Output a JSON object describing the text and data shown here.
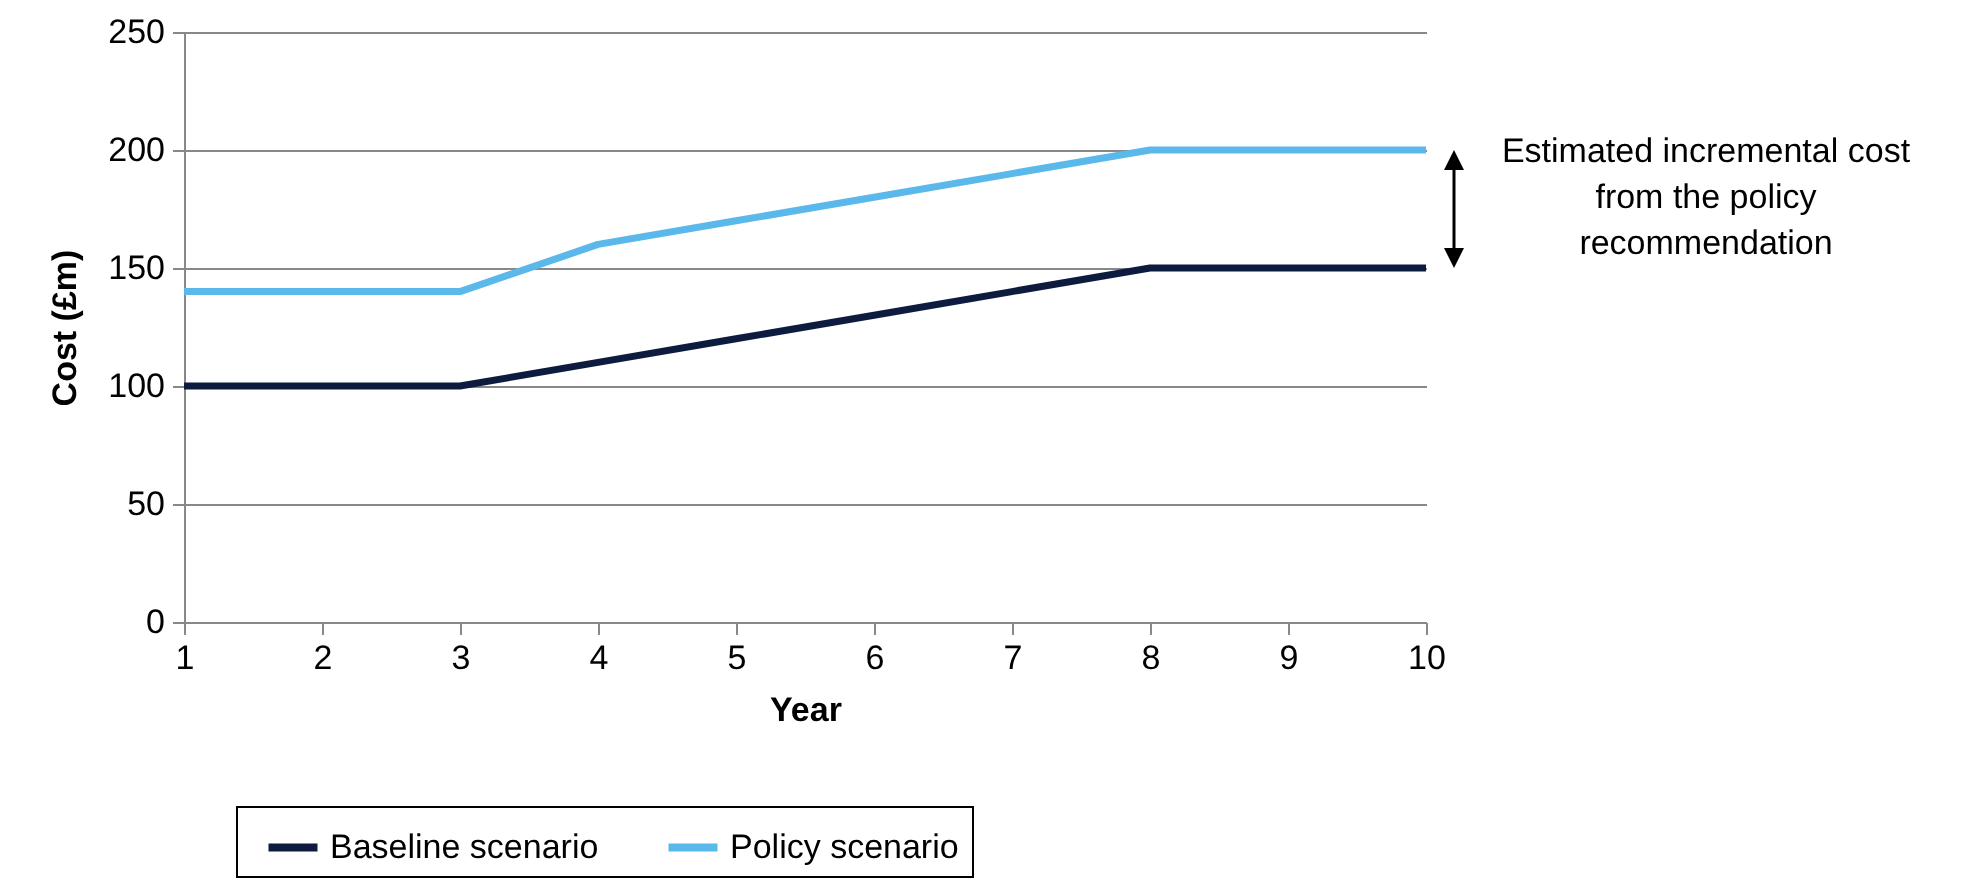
{
  "chart_data": {
    "type": "line",
    "xlabel": "Year",
    "ylabel": "Cost (£m)",
    "x": [
      1,
      2,
      3,
      4,
      5,
      6,
      7,
      8,
      9,
      10
    ],
    "series": [
      {
        "name": "Baseline scenario",
        "color": "#0d1b3e",
        "values": [
          100,
          100,
          100,
          110,
          120,
          130,
          140,
          150,
          150,
          150
        ]
      },
      {
        "name": "Policy scenario",
        "color": "#5bb8ea",
        "values": [
          140,
          140,
          140,
          160,
          170,
          180,
          190,
          200,
          200,
          200
        ]
      }
    ],
    "xlim": [
      1,
      10
    ],
    "xticks": [
      1,
      2,
      3,
      4,
      5,
      6,
      7,
      8,
      9,
      10
    ],
    "ylim": [
      0,
      250
    ],
    "yticks": [
      0,
      50,
      100,
      150,
      200,
      250
    ],
    "grid": "y",
    "legend": "bottom",
    "marker": "none",
    "line_style": "solid",
    "annotations": [
      "Estimated incremental cost from the policy recommendation"
    ]
  }
}
